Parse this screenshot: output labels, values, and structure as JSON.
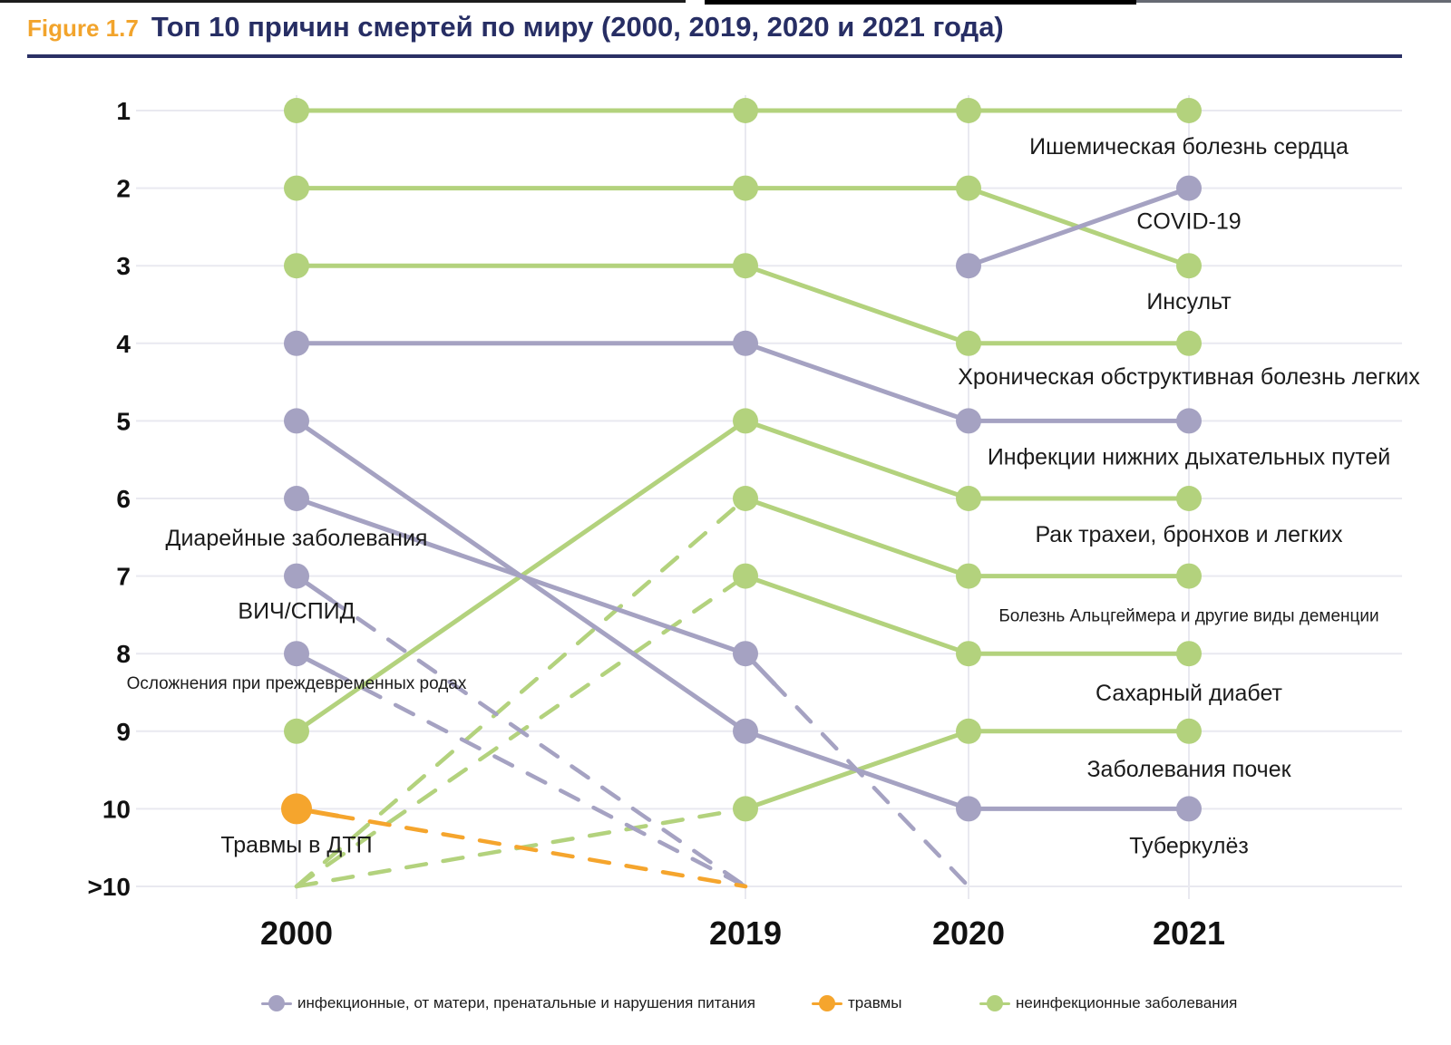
{
  "page": {
    "figure_label": "Figure 1.7",
    "title": "Топ 10 причин смертей по миру (2000, 2019, 2020 и 2021 года)"
  },
  "colors": {
    "infectious": "#a5a2c2",
    "injuries": "#f5a52d",
    "noncommunicable": "#b3d27d",
    "title_navy": "#272e64",
    "figure_orange": "#f2a42c",
    "grid": "#e9e9f0",
    "label_text": "#1b1b1b"
  },
  "legend": {
    "items": [
      {
        "group": "infectious",
        "label": "инфекционные, от матери, пренатальные и нарушения питания"
      },
      {
        "group": "injuries",
        "label": "травмы"
      },
      {
        "group": "noncommunicable",
        "label": "неинфекционные заболевания"
      }
    ]
  },
  "chart_data": {
    "type": "line",
    "subtype": "bump-rank-chart",
    "years": [
      "2000",
      "2019",
      "2020",
      "2021"
    ],
    "rank_ticks": [
      "1",
      "2",
      "3",
      "4",
      "5",
      "6",
      "7",
      "8",
      "9",
      "10",
      ">10"
    ],
    "rank_note": "rank value 11 means '>10' (outside the top 10); null means not shown",
    "legend_position": "bottom",
    "grid": true,
    "series": [
      {
        "name": "Ишемическая болезнь сердца",
        "group": "noncommunicable",
        "ranks": [
          1,
          1,
          1,
          1
        ],
        "label": {
          "year": "2021",
          "dy": 48,
          "small": false
        }
      },
      {
        "name": "Инсульт",
        "group": "noncommunicable",
        "ranks": [
          2,
          2,
          2,
          3
        ],
        "label": {
          "year": "2021",
          "dy": 48,
          "small": false
        }
      },
      {
        "name": "COVID-19",
        "group": "infectious",
        "ranks": [
          null,
          null,
          3,
          2
        ],
        "label": {
          "year": "2021",
          "dy": 45,
          "small": false
        }
      },
      {
        "name": "Хроническая обструктивная болезнь легких",
        "group": "noncommunicable",
        "ranks": [
          3,
          3,
          4,
          4
        ],
        "label": {
          "year": "2021",
          "dy": 45,
          "small": false
        }
      },
      {
        "name": "Инфекции нижних дыхательных путей",
        "group": "infectious",
        "ranks": [
          4,
          4,
          5,
          5
        ],
        "label": {
          "year": "2021",
          "dy": 48,
          "small": false
        }
      },
      {
        "name": "Рак трахеи, бронхов и легких",
        "group": "noncommunicable",
        "ranks": [
          9,
          5,
          6,
          6
        ],
        "label": {
          "year": "2021",
          "dy": 48,
          "small": false
        }
      },
      {
        "name": "Болезнь Альцгеймера и другие виды деменции",
        "group": "noncommunicable",
        "ranks": [
          11,
          6,
          7,
          7
        ],
        "label": {
          "year": "2021",
          "dy": 50,
          "small": true
        }
      },
      {
        "name": "Сахарный диабет",
        "group": "noncommunicable",
        "ranks": [
          11,
          7,
          8,
          8
        ],
        "label": {
          "year": "2021",
          "dy": 52,
          "small": false
        }
      },
      {
        "name": "Заболевания почек",
        "group": "noncommunicable",
        "ranks": [
          11,
          10,
          9,
          9
        ],
        "label": {
          "year": "2021",
          "dy": 50,
          "small": false
        }
      },
      {
        "name": "Туберкулёз",
        "group": "infectious",
        "ranks": [
          5,
          9,
          10,
          10
        ],
        "label": {
          "year": "2021",
          "dy": 49,
          "small": false
        }
      },
      {
        "name": "Диарейные заболевания",
        "group": "infectious",
        "ranks": [
          6,
          8,
          11,
          null
        ],
        "label": {
          "year": "2000",
          "dy": 52,
          "small": false
        }
      },
      {
        "name": "ВИЧ/СПИД",
        "group": "infectious",
        "ranks": [
          7,
          11,
          null,
          null
        ],
        "label": {
          "year": "2000",
          "dy": 47,
          "small": false
        }
      },
      {
        "name": "Осложнения при преждевременных родах",
        "group": "infectious",
        "ranks": [
          8,
          11,
          null,
          null
        ],
        "label": {
          "year": "2000",
          "dy": 39,
          "small": true
        }
      },
      {
        "name": "Травмы в ДТП",
        "group": "injuries",
        "ranks": [
          10,
          11,
          null,
          null
        ],
        "label": {
          "year": "2000",
          "dy": 48,
          "small": false
        }
      }
    ]
  }
}
